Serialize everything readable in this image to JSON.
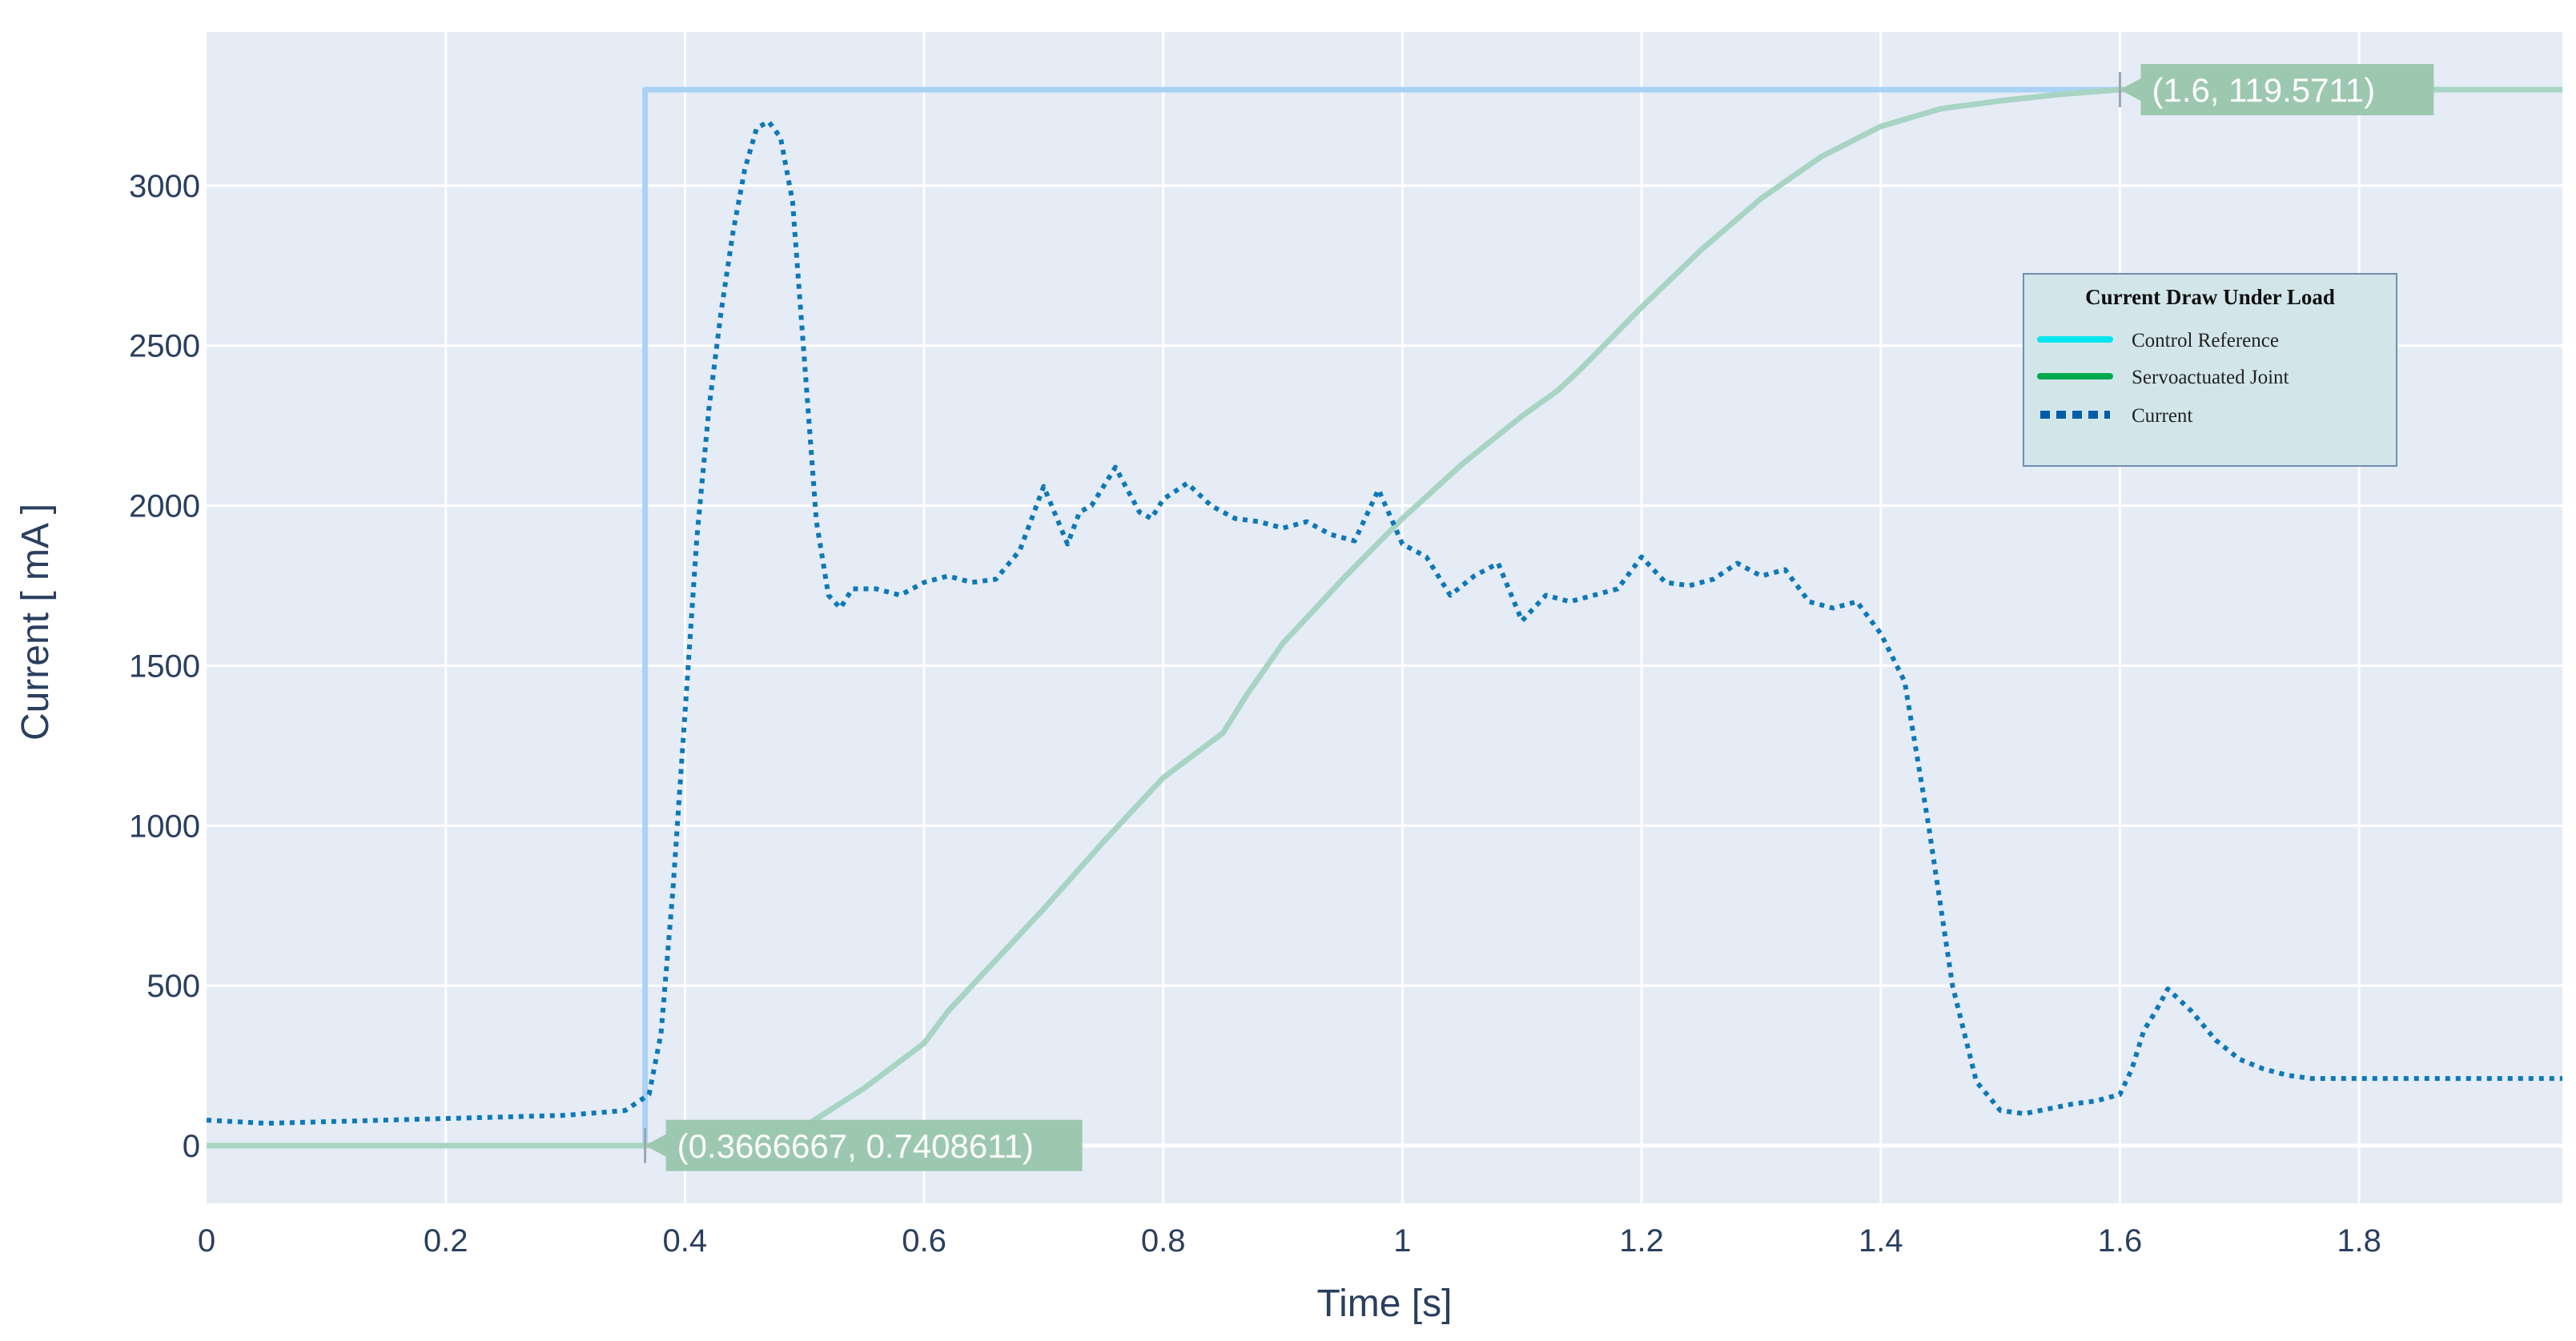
{
  "chart_data": {
    "type": "line",
    "title": "",
    "xlabel": "Time [s]",
    "ylabel": "Current [ mA ]",
    "xlim": [
      0,
      1.97
    ],
    "ylim": [
      -180,
      3480
    ],
    "x_ticks": [
      "0",
      "0.2",
      "0.4",
      "0.6",
      "0.8",
      "1",
      "1.2",
      "1.4",
      "1.6",
      "1.8"
    ],
    "y_ticks": [
      "0",
      "500",
      "1000",
      "1500",
      "2000",
      "2500",
      "3000"
    ],
    "grid": true,
    "legend": {
      "title": "Current Draw Under Load",
      "position": "top-right",
      "entries": [
        "Control Reference",
        "Servoactuated Joint",
        "Current"
      ],
      "swatch_colors": [
        "#00e5ee",
        "#00a94f",
        "#005ea8"
      ]
    },
    "series": [
      {
        "name": "Control Reference",
        "color": "#a9d2f5",
        "style": "solid",
        "x": [
          0,
          0.3666667,
          0.3666667,
          1.97
        ],
        "y": [
          0,
          0,
          3300,
          3300
        ]
      },
      {
        "name": "Servoactuated Joint",
        "color": "#a8d4c3",
        "style": "solid",
        "x": [
          0,
          0.3667,
          0.4,
          0.45,
          0.5,
          0.55,
          0.6,
          0.62,
          0.65,
          0.7,
          0.75,
          0.8,
          0.85,
          0.87,
          0.9,
          0.95,
          1.0,
          1.05,
          1.1,
          1.13,
          1.15,
          1.2,
          1.25,
          1.3,
          1.35,
          1.4,
          1.45,
          1.5,
          1.55,
          1.6,
          1.65,
          1.7,
          1.75,
          1.8,
          1.85,
          1.9,
          1.97
        ],
        "y": [
          0,
          0,
          0,
          0,
          60,
          180,
          320,
          420,
          540,
          740,
          950,
          1150,
          1290,
          1410,
          1570,
          1770,
          1960,
          2130,
          2280,
          2360,
          2430,
          2620,
          2800,
          2960,
          3090,
          3185,
          3240,
          3265,
          3285,
          3300,
          3300,
          3300,
          3300,
          3300,
          3300,
          3300,
          3300
        ]
      },
      {
        "name": "Current",
        "color": "#0e78b8",
        "style": "dotted",
        "x": [
          0,
          0.05,
          0.1,
          0.2,
          0.3,
          0.35,
          0.37,
          0.38,
          0.39,
          0.4,
          0.41,
          0.42,
          0.43,
          0.44,
          0.45,
          0.46,
          0.47,
          0.48,
          0.49,
          0.5,
          0.51,
          0.52,
          0.53,
          0.54,
          0.56,
          0.58,
          0.6,
          0.62,
          0.64,
          0.66,
          0.68,
          0.7,
          0.72,
          0.73,
          0.74,
          0.76,
          0.78,
          0.79,
          0.8,
          0.82,
          0.84,
          0.86,
          0.88,
          0.9,
          0.92,
          0.94,
          0.96,
          0.98,
          1.0,
          1.02,
          1.04,
          1.06,
          1.08,
          1.1,
          1.12,
          1.14,
          1.16,
          1.18,
          1.2,
          1.22,
          1.24,
          1.26,
          1.28,
          1.3,
          1.32,
          1.34,
          1.36,
          1.38,
          1.4,
          1.42,
          1.44,
          1.46,
          1.48,
          1.5,
          1.52,
          1.54,
          1.56,
          1.58,
          1.59,
          1.6,
          1.61,
          1.62,
          1.63,
          1.64,
          1.66,
          1.68,
          1.7,
          1.72,
          1.74,
          1.76,
          1.78,
          1.8,
          1.82,
          1.84,
          1.86,
          1.88,
          1.9,
          1.92,
          1.94,
          1.97
        ],
        "y": [
          80,
          70,
          75,
          85,
          95,
          110,
          160,
          350,
          800,
          1350,
          1900,
          2300,
          2600,
          2850,
          3050,
          3180,
          3200,
          3150,
          2950,
          2450,
          1950,
          1720,
          1680,
          1740,
          1740,
          1720,
          1760,
          1780,
          1760,
          1770,
          1860,
          2060,
          1880,
          1980,
          2000,
          2120,
          1980,
          1960,
          2020,
          2070,
          2000,
          1960,
          1950,
          1930,
          1950,
          1910,
          1890,
          2050,
          1880,
          1840,
          1720,
          1780,
          1820,
          1640,
          1720,
          1700,
          1720,
          1740,
          1840,
          1760,
          1750,
          1770,
          1820,
          1780,
          1800,
          1700,
          1680,
          1700,
          1600,
          1450,
          1000,
          500,
          200,
          110,
          100,
          115,
          130,
          140,
          150,
          160,
          240,
          360,
          420,
          490,
          420,
          330,
          270,
          240,
          220,
          210,
          210,
          210,
          210,
          210,
          210,
          210,
          210,
          210,
          210,
          210
        ]
      }
    ],
    "annotations": [
      {
        "x": 0.3666667,
        "y": 0.7408611,
        "text": "(0.3666667, 0.7408611)",
        "color": "#9cc8af"
      },
      {
        "x": 1.6,
        "y": 3300,
        "text": "(1.6, 119.5711)",
        "color": "#9cc8af"
      }
    ]
  }
}
